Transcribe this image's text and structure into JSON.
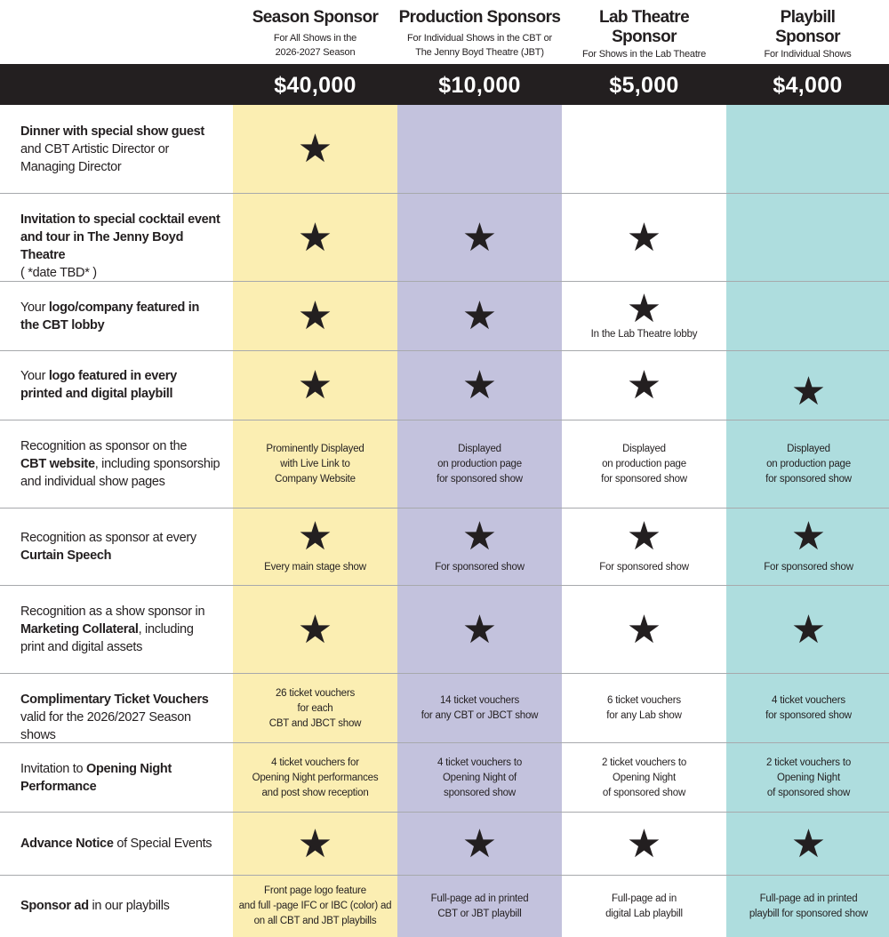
{
  "colors": {
    "season": "#fbeeb2",
    "production": "#c3c2dd",
    "lab": "#ffffff",
    "playbill": "#aeddde",
    "price_bar": "#231f20"
  },
  "star_icon": "★",
  "columns": [
    {
      "title": "Season Sponsor",
      "sub1": "For All Shows in the",
      "sub2": "2026-2027 Season",
      "price": "$40,000"
    },
    {
      "title": "Production Sponsors",
      "sub1": "For Individual Shows in the CBT or",
      "sub2": "The Jenny Boyd Theatre (JBT)",
      "price": "$10,000"
    },
    {
      "title": "Lab Theatre",
      "title2": "Sponsor",
      "sub1": "For Shows in the Lab Theatre",
      "price": "$5,000"
    },
    {
      "title": "Playbill",
      "title2": "Sponsor",
      "sub1": "For Individual Shows",
      "price": "$4,000"
    }
  ],
  "rows": [
    {
      "label": {
        "b1": "Dinner with special show guest",
        "t1": "and CBT Artistic Director or",
        "t2": "Managing Director"
      },
      "cells": [
        {
          "star": true
        },
        {
          "star": false
        },
        {
          "star": false
        },
        {
          "star": false
        }
      ]
    },
    {
      "label": {
        "b1": "Invitation to special cocktail event",
        "b2": "and tour in The Jenny Boyd Theatre",
        "t1": "( *date TBD* )"
      },
      "cells": [
        {
          "star": true
        },
        {
          "star": true
        },
        {
          "star": true
        },
        {
          "star": false
        }
      ]
    },
    {
      "label": {
        "a": "Your ",
        "b1": "logo/company featured  in",
        "b2": "the CBT lobby"
      },
      "cells": [
        {
          "star": true
        },
        {
          "star": true
        },
        {
          "star": true,
          "n1": "In the Lab Theatre lobby"
        },
        {
          "star": false
        }
      ]
    },
    {
      "label": {
        "a": "Your ",
        "b1": "logo featured in every",
        "b2": "printed and digital playbill"
      },
      "cells": [
        {
          "star": true
        },
        {
          "star": true
        },
        {
          "star": true
        },
        {
          "star": true
        }
      ]
    },
    {
      "label": {
        "t1": "Recognition as sponsor on the",
        "b2": "CBT website",
        "c2": ", including sponsorship",
        "t3": "and individual show pages"
      },
      "cells": [
        {
          "star": false,
          "n1": "Prominently Displayed",
          "n2": "with Live Link to",
          "n3": "Company Website"
        },
        {
          "star": false,
          "n1": "Displayed",
          "n2": "on production page",
          "n3": "for sponsored show"
        },
        {
          "star": false,
          "n1": "Displayed",
          "n2": "on production page",
          "n3": "for sponsored show"
        },
        {
          "star": false,
          "n1": "Displayed",
          "n2": "on production page",
          "n3": "for sponsored show"
        }
      ]
    },
    {
      "label": {
        "t1": "Recognition as sponsor at every",
        "b2": "Curtain Speech"
      },
      "cells": [
        {
          "star": true,
          "n1": "Every main stage show"
        },
        {
          "star": true,
          "n1": "For sponsored show"
        },
        {
          "star": true,
          "n1": "For sponsored show"
        },
        {
          "star": true,
          "n1": "For sponsored show"
        }
      ]
    },
    {
      "label": {
        "t1": "Recognition as a show sponsor in",
        "b2": "Marketing Collateral",
        "c2": ", including",
        "t3": "print and digital assets"
      },
      "cells": [
        {
          "star": true
        },
        {
          "star": true
        },
        {
          "star": true
        },
        {
          "star": true
        }
      ]
    },
    {
      "label": {
        "b1": "Complimentary Ticket Vouchers",
        "t2": "valid for the 2026/2027 Season shows"
      },
      "cells": [
        {
          "star": false,
          "n1": "26 ticket vouchers",
          "n2": "for each",
          "n3": "CBT and JBCT show"
        },
        {
          "star": false,
          "n1": "14 ticket vouchers",
          "n2": "for any CBT or JBCT show"
        },
        {
          "star": false,
          "n1": "6 ticket vouchers",
          "n2": "for any Lab show"
        },
        {
          "star": false,
          "n1": "4 ticket vouchers",
          "n2": "for sponsored show"
        }
      ]
    },
    {
      "label": {
        "a": "Invitation  to ",
        "b1": "Opening Night",
        "b2": "Performance"
      },
      "cells": [
        {
          "star": false,
          "n1": "4 ticket vouchers for",
          "n2": "Opening Night performances",
          "n3": "and post show reception"
        },
        {
          "star": false,
          "n1": "4 ticket vouchers to",
          "n2": "Opening Night of",
          "n3": "sponsored show"
        },
        {
          "star": false,
          "n1": "2 ticket vouchers to",
          "n2": "Opening Night",
          "n3": "of sponsored show"
        },
        {
          "star": false,
          "n1": "2 ticket vouchers to",
          "n2": "Opening Night",
          "n3": "of sponsored show"
        }
      ]
    },
    {
      "label": {
        "b1": "Advance Notice",
        "c1": " of Special Events"
      },
      "cells": [
        {
          "star": true
        },
        {
          "star": true
        },
        {
          "star": true
        },
        {
          "star": true
        }
      ]
    },
    {
      "label": {
        "b1": "Sponsor ad",
        "c1": " in our playbills"
      },
      "cells": [
        {
          "star": false,
          "n1": "Front page logo feature",
          "n2": "and full -page IFC or IBC (color) ad",
          "n3": "on all CBT and JBT playbills"
        },
        {
          "star": false,
          "n1": "Full-page ad in printed",
          "n2": "CBT or JBT playbill"
        },
        {
          "star": false,
          "n1": "Full-page ad in",
          "n2": "digital Lab playbill"
        },
        {
          "star": false,
          "n1": "Full-page ad in printed",
          "n2": "playbill for sponsored show"
        }
      ]
    }
  ]
}
